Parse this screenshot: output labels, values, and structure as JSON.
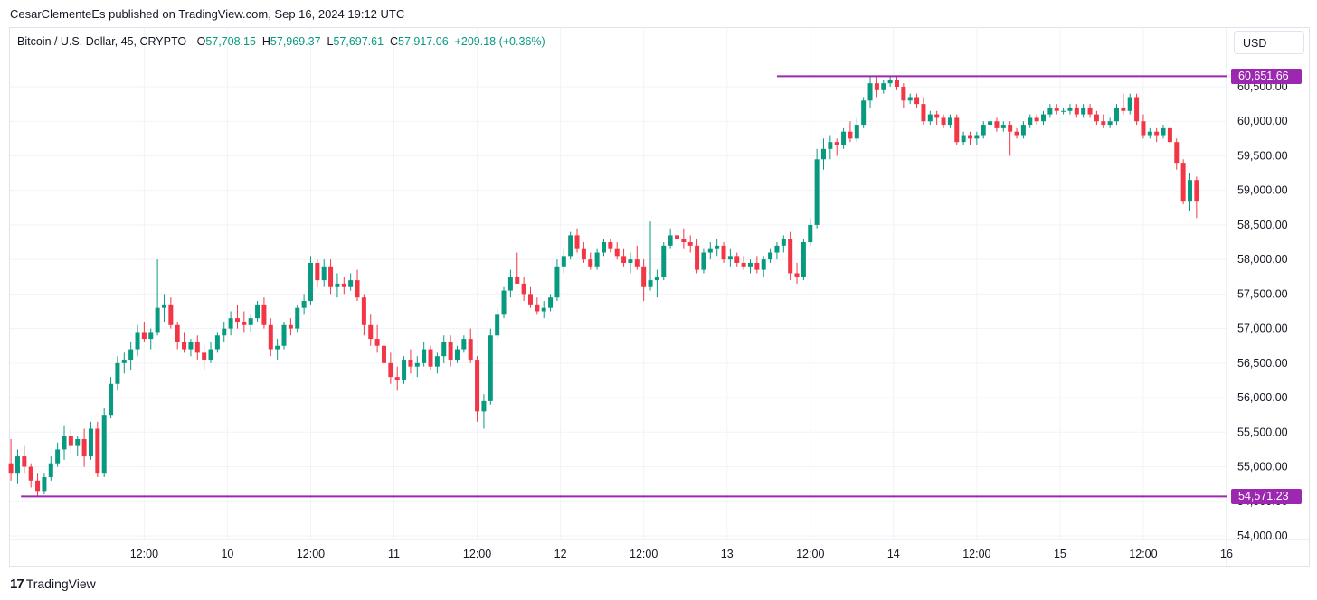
{
  "header": {
    "publisher_text": "CesarClementeEs published on TradingView.com, Sep 16, 2024 19:12 UTC"
  },
  "legend": {
    "symbol": "Bitcoin / U.S. Dollar, 45, CRYPTO",
    "o_label": "O",
    "o_value": "57,708.15",
    "h_label": "H",
    "h_value": "57,969.37",
    "l_label": "L",
    "l_value": "57,697.61",
    "c_label": "C",
    "c_value": "57,917.06",
    "change": "+209.18 (+0.36%)"
  },
  "toolbar": {
    "currency": "USD"
  },
  "footer": {
    "logo": "17",
    "brand": "TradingView"
  },
  "colors": {
    "up": "#089981",
    "down": "#f23645",
    "level": "#9c27b0",
    "grid": "#f0f3fa",
    "text": "#131722"
  },
  "chart_data": {
    "type": "candlestick",
    "title": "",
    "ylim": [
      54000,
      60800
    ],
    "y_ticks": [
      54000,
      54500,
      55000,
      55500,
      56000,
      56500,
      57000,
      57500,
      58000,
      58500,
      59000,
      59500,
      60000,
      60500
    ],
    "y_tick_labels": [
      "54,000.00",
      "54,500.00",
      "55,000.00",
      "55,500.00",
      "56,000.00",
      "56,500.00",
      "57,000.00",
      "57,500.00",
      "58,000.00",
      "58,500.00",
      "59,000.00",
      "59,500.00",
      "60,000.00",
      "60,500.00"
    ],
    "x_ticks": [
      {
        "label": "12:00",
        "t": 0.4
      },
      {
        "label": "10",
        "t": 0.65
      },
      {
        "label": "12:00",
        "t": 0.9
      },
      {
        "label": "11",
        "t": 1.15
      },
      {
        "label": "12:00",
        "t": 1.4
      },
      {
        "label": "12",
        "t": 1.65
      },
      {
        "label": "12:00",
        "t": 1.9
      },
      {
        "label": "13",
        "t": 2.15
      },
      {
        "label": "12:00",
        "t": 2.4
      },
      {
        "label": "14",
        "t": 2.65
      },
      {
        "label": "12:00",
        "t": 2.9
      },
      {
        "label": "15",
        "t": 3.15
      },
      {
        "label": "12:00",
        "t": 3.4
      },
      {
        "label": "16",
        "t": 3.65
      }
    ],
    "horizontal_levels": [
      {
        "value": 60651.66,
        "label": "60,651.66",
        "from_t": 2.3
      },
      {
        "value": 54571.23,
        "label": "54,571.23",
        "from_t": 0.03
      }
    ],
    "candles_ohlc": [
      [
        0.0,
        55050,
        55400,
        54800,
        54900
      ],
      [
        0.02,
        54900,
        55250,
        54750,
        55150
      ],
      [
        0.04,
        55150,
        55300,
        54900,
        55000
      ],
      [
        0.06,
        55000,
        55050,
        54700,
        54800
      ],
      [
        0.08,
        54800,
        54900,
        54580,
        54650
      ],
      [
        0.1,
        54650,
        54900,
        54600,
        54850
      ],
      [
        0.12,
        54850,
        55150,
        54800,
        55050
      ],
      [
        0.14,
        55050,
        55350,
        55000,
        55250
      ],
      [
        0.16,
        55250,
        55600,
        55100,
        55450
      ],
      [
        0.18,
        55450,
        55550,
        55200,
        55300
      ],
      [
        0.2,
        55300,
        55450,
        55150,
        55400
      ],
      [
        0.22,
        55400,
        55550,
        55000,
        55150
      ],
      [
        0.24,
        55150,
        55650,
        55100,
        55550
      ],
      [
        0.26,
        55550,
        55650,
        54850,
        54900
      ],
      [
        0.28,
        54900,
        55850,
        54850,
        55750
      ],
      [
        0.3,
        55750,
        56300,
        55700,
        56200
      ],
      [
        0.32,
        56200,
        56600,
        56100,
        56500
      ],
      [
        0.34,
        56500,
        56650,
        56350,
        56550
      ],
      [
        0.36,
        56550,
        56800,
        56400,
        56700
      ],
      [
        0.38,
        56700,
        57050,
        56600,
        56950
      ],
      [
        0.4,
        56950,
        57100,
        56800,
        56850
      ],
      [
        0.42,
        56850,
        57000,
        56700,
        56950
      ],
      [
        0.44,
        56950,
        58000,
        56900,
        57300
      ],
      [
        0.46,
        57300,
        57500,
        57100,
        57350
      ],
      [
        0.48,
        57350,
        57450,
        57000,
        57050
      ],
      [
        0.5,
        57050,
        57100,
        56700,
        56800
      ],
      [
        0.52,
        56800,
        56950,
        56650,
        56700
      ],
      [
        0.54,
        56700,
        56850,
        56600,
        56800
      ],
      [
        0.56,
        56800,
        56900,
        56550,
        56650
      ],
      [
        0.58,
        56650,
        56750,
        56400,
        56550
      ],
      [
        0.6,
        56550,
        56800,
        56500,
        56700
      ],
      [
        0.62,
        56700,
        56950,
        56650,
        56900
      ],
      [
        0.64,
        56900,
        57100,
        56800,
        57000
      ],
      [
        0.66,
        57000,
        57250,
        56900,
        57150
      ],
      [
        0.68,
        57150,
        57350,
        57000,
        57100
      ],
      [
        0.7,
        57100,
        57250,
        56950,
        57050
      ],
      [
        0.72,
        57050,
        57200,
        56950,
        57150
      ],
      [
        0.74,
        57150,
        57400,
        57100,
        57350
      ],
      [
        0.76,
        57350,
        57450,
        57000,
        57050
      ],
      [
        0.78,
        57050,
        57150,
        56600,
        56700
      ],
      [
        0.8,
        56700,
        56850,
        56550,
        56750
      ],
      [
        0.82,
        56750,
        57100,
        56700,
        57050
      ],
      [
        0.84,
        57050,
        57150,
        56900,
        57000
      ],
      [
        0.86,
        57000,
        57350,
        56950,
        57300
      ],
      [
        0.88,
        57300,
        57500,
        57200,
        57400
      ],
      [
        0.9,
        57400,
        58050,
        57350,
        57950
      ],
      [
        0.92,
        57950,
        58000,
        57600,
        57700
      ],
      [
        0.94,
        57700,
        58000,
        57600,
        57900
      ],
      [
        0.96,
        57900,
        58000,
        57500,
        57600
      ],
      [
        0.98,
        57600,
        57800,
        57450,
        57650
      ],
      [
        1.0,
        57650,
        57750,
        57500,
        57600
      ],
      [
        1.02,
        57600,
        57800,
        57550,
        57700
      ],
      [
        1.04,
        57700,
        57850,
        57400,
        57450
      ],
      [
        1.06,
        57450,
        57500,
        56900,
        57050
      ],
      [
        1.08,
        57050,
        57200,
        56750,
        56850
      ],
      [
        1.1,
        56850,
        57050,
        56650,
        56750
      ],
      [
        1.12,
        56750,
        56900,
        56400,
        56500
      ],
      [
        1.14,
        56500,
        56650,
        56200,
        56300
      ],
      [
        1.16,
        56300,
        56450,
        56100,
        56250
      ],
      [
        1.18,
        56250,
        56600,
        56200,
        56550
      ],
      [
        1.2,
        56550,
        56700,
        56350,
        56450
      ],
      [
        1.22,
        56450,
        56600,
        56300,
        56500
      ],
      [
        1.24,
        56500,
        56800,
        56450,
        56700
      ],
      [
        1.26,
        56700,
        56750,
        56400,
        56450
      ],
      [
        1.28,
        56450,
        56650,
        56350,
        56600
      ],
      [
        1.3,
        56600,
        56900,
        56500,
        56800
      ],
      [
        1.32,
        56800,
        56900,
        56450,
        56550
      ],
      [
        1.34,
        56550,
        56750,
        56500,
        56700
      ],
      [
        1.36,
        56700,
        56900,
        56650,
        56850
      ],
      [
        1.38,
        56850,
        57000,
        56500,
        56550
      ],
      [
        1.4,
        56550,
        56600,
        55650,
        55800
      ],
      [
        1.42,
        55800,
        56050,
        55550,
        55950
      ],
      [
        1.44,
        55950,
        57000,
        55900,
        56900
      ],
      [
        1.46,
        56900,
        57300,
        56850,
        57200
      ],
      [
        1.48,
        57200,
        57600,
        57150,
        57550
      ],
      [
        1.5,
        57550,
        57850,
        57450,
        57750
      ],
      [
        1.52,
        57750,
        58100,
        57650,
        57650
      ],
      [
        1.54,
        57650,
        57750,
        57400,
        57500
      ],
      [
        1.56,
        57500,
        57600,
        57300,
        57350
      ],
      [
        1.58,
        57350,
        57450,
        57200,
        57250
      ],
      [
        1.6,
        57250,
        57400,
        57150,
        57300
      ],
      [
        1.62,
        57300,
        57500,
        57250,
        57450
      ],
      [
        1.64,
        57450,
        58000,
        57400,
        57900
      ],
      [
        1.66,
        57900,
        58150,
        57800,
        58050
      ],
      [
        1.68,
        58050,
        58400,
        58000,
        58350
      ],
      [
        1.7,
        58350,
        58450,
        58100,
        58150
      ],
      [
        1.72,
        58150,
        58250,
        57950,
        58000
      ],
      [
        1.74,
        58000,
        58100,
        57850,
        57900
      ],
      [
        1.76,
        57900,
        58150,
        57850,
        58100
      ],
      [
        1.78,
        58100,
        58300,
        58050,
        58250
      ],
      [
        1.8,
        58250,
        58300,
        58100,
        58150
      ],
      [
        1.82,
        58150,
        58250,
        58000,
        58050
      ],
      [
        1.84,
        58050,
        58150,
        57900,
        57950
      ],
      [
        1.86,
        57950,
        58100,
        57800,
        58000
      ],
      [
        1.88,
        58000,
        58200,
        57850,
        57900
      ],
      [
        1.9,
        57900,
        58000,
        57400,
        57600
      ],
      [
        1.92,
        57600,
        58550,
        57550,
        57700
      ],
      [
        1.94,
        57700,
        57850,
        57450,
        57750
      ],
      [
        1.96,
        57750,
        58250,
        57700,
        58200
      ],
      [
        1.98,
        58200,
        58450,
        58150,
        58350
      ],
      [
        2.0,
        58350,
        58400,
        58250,
        58300
      ],
      [
        2.02,
        58300,
        58450,
        58150,
        58250
      ],
      [
        2.04,
        58250,
        58350,
        58100,
        58200
      ],
      [
        2.06,
        58200,
        58300,
        57800,
        57850
      ],
      [
        2.08,
        57850,
        58150,
        57800,
        58100
      ],
      [
        2.1,
        58100,
        58250,
        58000,
        58150
      ],
      [
        2.12,
        58150,
        58300,
        58050,
        58200
      ],
      [
        2.14,
        58200,
        58250,
        57950,
        58000
      ],
      [
        2.16,
        58000,
        58150,
        57900,
        58050
      ],
      [
        2.18,
        58050,
        58100,
        57900,
        57950
      ],
      [
        2.2,
        57950,
        58050,
        57850,
        57900
      ],
      [
        2.22,
        57900,
        58000,
        57800,
        57950
      ],
      [
        2.24,
        57950,
        58050,
        57800,
        57850
      ],
      [
        2.26,
        57850,
        58050,
        57750,
        58000
      ],
      [
        2.28,
        58000,
        58150,
        57950,
        58100
      ],
      [
        2.3,
        58100,
        58250,
        58000,
        58200
      ],
      [
        2.32,
        58200,
        58350,
        58100,
        58300
      ],
      [
        2.34,
        58300,
        58400,
        57700,
        57800
      ],
      [
        2.36,
        57800,
        57950,
        57650,
        57750
      ],
      [
        2.38,
        57750,
        58300,
        57700,
        58250
      ],
      [
        2.4,
        58250,
        58600,
        58200,
        58500
      ],
      [
        2.42,
        58500,
        59600,
        58450,
        59450
      ],
      [
        2.44,
        59450,
        59750,
        59300,
        59600
      ],
      [
        2.46,
        59600,
        59800,
        59450,
        59700
      ],
      [
        2.48,
        59700,
        59750,
        59500,
        59650
      ],
      [
        2.5,
        59650,
        59900,
        59600,
        59850
      ],
      [
        2.52,
        59850,
        60000,
        59700,
        59750
      ],
      [
        2.54,
        59750,
        60050,
        59700,
        59950
      ],
      [
        2.56,
        59950,
        60350,
        59900,
        60300
      ],
      [
        2.58,
        60300,
        60650,
        60200,
        60550
      ],
      [
        2.6,
        60550,
        60650,
        60350,
        60450
      ],
      [
        2.62,
        60450,
        60600,
        60400,
        60550
      ],
      [
        2.64,
        60550,
        60650,
        60500,
        60600
      ],
      [
        2.66,
        60600,
        60650,
        60450,
        60500
      ],
      [
        2.68,
        60500,
        60550,
        60200,
        60300
      ],
      [
        2.7,
        60300,
        60400,
        60250,
        60350
      ],
      [
        2.72,
        60350,
        60400,
        60200,
        60250
      ],
      [
        2.74,
        60250,
        60350,
        59950,
        60000
      ],
      [
        2.76,
        60000,
        60150,
        59950,
        60100
      ],
      [
        2.78,
        60100,
        60150,
        59950,
        60050
      ],
      [
        2.8,
        60050,
        60100,
        59900,
        59950
      ],
      [
        2.82,
        59950,
        60100,
        59900,
        60050
      ],
      [
        2.84,
        60050,
        60100,
        59650,
        59700
      ],
      [
        2.86,
        59700,
        59850,
        59650,
        59800
      ],
      [
        2.88,
        59800,
        59850,
        59650,
        59750
      ],
      [
        2.9,
        59750,
        59850,
        59650,
        59800
      ],
      [
        2.92,
        59800,
        60000,
        59750,
        59950
      ],
      [
        2.94,
        59950,
        60050,
        59900,
        60000
      ],
      [
        2.96,
        60000,
        60050,
        59850,
        59900
      ],
      [
        2.98,
        59900,
        60000,
        59850,
        59950
      ],
      [
        3.0,
        59950,
        60000,
        59500,
        59850
      ],
      [
        3.02,
        59850,
        59900,
        59750,
        59800
      ],
      [
        3.04,
        59800,
        60000,
        59750,
        59950
      ],
      [
        3.06,
        59950,
        60100,
        59900,
        60050
      ],
      [
        3.08,
        60050,
        60100,
        59950,
        60000
      ],
      [
        3.1,
        60000,
        60150,
        59950,
        60100
      ],
      [
        3.12,
        60100,
        60250,
        60050,
        60200
      ],
      [
        3.14,
        60200,
        60250,
        60100,
        60150
      ],
      [
        3.16,
        60150,
        60200,
        60100,
        60150
      ],
      [
        3.18,
        60150,
        60250,
        60100,
        60200
      ],
      [
        3.2,
        60200,
        60250,
        60050,
        60100
      ],
      [
        3.22,
        60100,
        60250,
        60050,
        60200
      ],
      [
        3.24,
        60200,
        60250,
        60050,
        60100
      ],
      [
        3.26,
        60100,
        60150,
        59950,
        60000
      ],
      [
        3.28,
        60000,
        60100,
        59900,
        59950
      ],
      [
        3.3,
        59950,
        60050,
        59900,
        60000
      ],
      [
        3.32,
        60000,
        60250,
        59950,
        60200
      ],
      [
        3.34,
        60200,
        60400,
        60100,
        60150
      ],
      [
        3.36,
        60150,
        60400,
        60100,
        60350
      ],
      [
        3.38,
        60350,
        60400,
        59950,
        60000
      ],
      [
        3.4,
        60000,
        60100,
        59750,
        59800
      ],
      [
        3.42,
        59800,
        59900,
        59750,
        59850
      ],
      [
        3.44,
        59850,
        59900,
        59700,
        59800
      ],
      [
        3.46,
        59800,
        59950,
        59750,
        59900
      ],
      [
        3.48,
        59900,
        59950,
        59650,
        59700
      ],
      [
        3.5,
        59700,
        59750,
        59300,
        59400
      ],
      [
        3.52,
        59400,
        59450,
        58800,
        58850
      ],
      [
        3.54,
        58850,
        59250,
        58700,
        59150
      ],
      [
        3.56,
        59150,
        59200,
        58600,
        58850
      ]
    ]
  }
}
